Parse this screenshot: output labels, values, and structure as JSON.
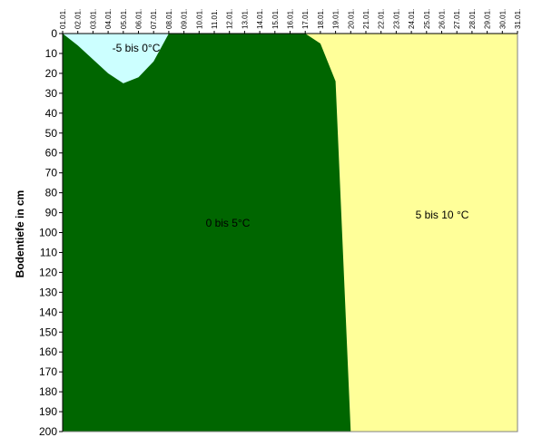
{
  "chart_data": {
    "type": "area",
    "y_label": "Bodentiefe in cm",
    "categories": [
      "01.01.",
      "02.01.",
      "03.01.",
      "04.01.",
      "05.01.",
      "06.01.",
      "07.01.",
      "08.01.",
      "09.01.",
      "10.01.",
      "11.01.",
      "12.01.",
      "13.01.",
      "14.01.",
      "15.01.",
      "16.01.",
      "17.01.",
      "18.01.",
      "19.01.",
      "20.01.",
      "21.01.",
      "22.01.",
      "23.01.",
      "24.01.",
      "25.01.",
      "26.01.",
      "27.01.",
      "28.01.",
      "29.01.",
      "30.01.",
      "31.01."
    ],
    "ylim": [
      0,
      200
    ],
    "y_inverted": true,
    "yticks": [
      0,
      10,
      20,
      30,
      40,
      50,
      60,
      70,
      80,
      90,
      100,
      110,
      120,
      130,
      140,
      150,
      160,
      170,
      180,
      190,
      200
    ],
    "series": [
      {
        "name": "5 bis 10 °C",
        "color": "#ffff99"
      },
      {
        "name": "0 bis 5°C",
        "color": "#006600",
        "values": [
          0,
          0,
          0,
          0,
          0,
          0,
          0,
          0,
          0,
          0,
          0,
          0,
          0,
          0,
          0,
          0,
          0,
          5,
          24,
          200,
          200,
          200,
          200,
          200,
          200,
          200,
          200,
          200,
          200,
          200,
          200
        ]
      },
      {
        "name": "-5 bis 0°C",
        "color": "#ccffff",
        "values": [
          0,
          6,
          13,
          20,
          25,
          22,
          14,
          0,
          null,
          null,
          null,
          null,
          null,
          null,
          null,
          null,
          null,
          null,
          null,
          null,
          null,
          null,
          null,
          null,
          null,
          null,
          null,
          null,
          null,
          null,
          null
        ]
      }
    ]
  }
}
